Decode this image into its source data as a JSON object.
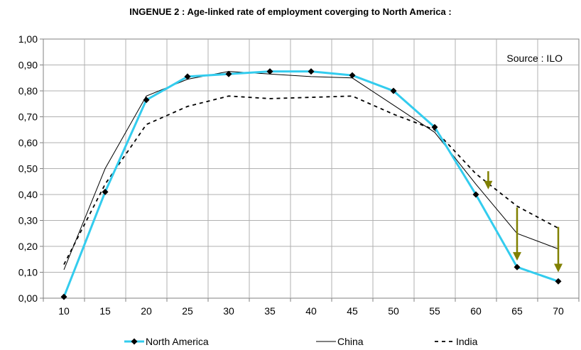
{
  "chart_data": {
    "type": "line",
    "title": "INGENUE 2 : Age-linked rate of employment coverging to North America :",
    "source_note": "Source : ILO",
    "xlabel": "",
    "ylabel": "",
    "x": [
      10,
      15,
      20,
      25,
      30,
      35,
      40,
      45,
      50,
      55,
      60,
      65,
      70
    ],
    "xlim": [
      7.5,
      72.5
    ],
    "ylim": [
      0,
      1.0
    ],
    "y_ticks": [
      "0,00",
      "0,10",
      "0,20",
      "0,30",
      "0,40",
      "0,50",
      "0,60",
      "0,70",
      "0,80",
      "0,90",
      "1,00"
    ],
    "x_ticks": [
      "10",
      "15",
      "20",
      "25",
      "30",
      "35",
      "40",
      "45",
      "50",
      "55",
      "60",
      "65",
      "70"
    ],
    "grid": true,
    "legend_position": "bottom",
    "series": [
      {
        "name": "North America",
        "color": "#33CCEE",
        "marker": "diamond",
        "style": "solid-thick",
        "values": [
          0.005,
          0.41,
          0.765,
          0.855,
          0.865,
          0.875,
          0.875,
          0.86,
          0.8,
          0.66,
          0.4,
          0.12,
          0.065
        ]
      },
      {
        "name": "China",
        "color": "#000000",
        "marker": "none",
        "style": "solid-thin",
        "values": [
          0.11,
          0.5,
          0.78,
          0.845,
          0.875,
          0.865,
          0.855,
          0.85,
          0.745,
          0.64,
          0.44,
          0.25,
          0.19
        ]
      },
      {
        "name": "India",
        "color": "#000000",
        "marker": "none",
        "style": "dashed",
        "values": [
          0.13,
          0.44,
          0.67,
          0.74,
          0.78,
          0.77,
          0.775,
          0.78,
          0.71,
          0.65,
          0.48,
          0.355,
          0.27
        ]
      }
    ],
    "annotations": [
      {
        "type": "arrow",
        "x": 61.5,
        "from": 0.49,
        "to": 0.42,
        "color": "#808000"
      },
      {
        "type": "arrow",
        "x": 65,
        "from": 0.35,
        "to": 0.145,
        "color": "#808000"
      },
      {
        "type": "arrow",
        "x": 70,
        "from": 0.275,
        "to": 0.1,
        "color": "#808000"
      }
    ]
  }
}
